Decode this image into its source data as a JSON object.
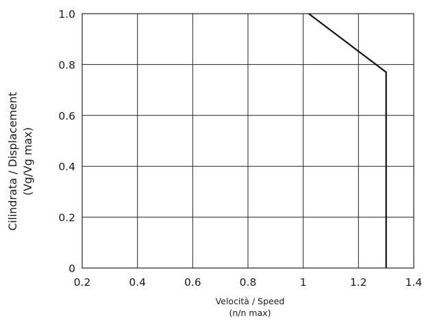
{
  "chart_data": {
    "type": "line",
    "title": "",
    "xlabel_lines": [
      "Velocità  /  Speed",
      "(n/n  max)"
    ],
    "ylabel_lines": [
      "Cilindrata  /  Displacement",
      "(Vg/Vg  max)"
    ],
    "x_ticks": [
      {
        "value": 0.2,
        "label": "0.2"
      },
      {
        "value": 0.4,
        "label": "0.4"
      },
      {
        "value": 0.6,
        "label": "0.6"
      },
      {
        "value": 0.8,
        "label": "0.8"
      },
      {
        "value": 1.0,
        "label": "1"
      },
      {
        "value": 1.2,
        "label": "1.2"
      },
      {
        "value": 1.4,
        "label": "1.4"
      }
    ],
    "y_ticks": [
      {
        "value": 0.0,
        "label": "0"
      },
      {
        "value": 0.2,
        "label": "0.2"
      },
      {
        "value": 0.4,
        "label": "0.4"
      },
      {
        "value": 0.6,
        "label": "0.6"
      },
      {
        "value": 0.8,
        "label": "0.8"
      },
      {
        "value": 1.0,
        "label": "1.0"
      }
    ],
    "xlim": [
      0.2,
      1.4
    ],
    "ylim": [
      0,
      1.0
    ],
    "grid": true,
    "series": [
      {
        "x": [
          1.02,
          1.3,
          1.3
        ],
        "y": [
          1.0,
          0.77,
          0.0
        ],
        "color": "#111111"
      }
    ]
  }
}
